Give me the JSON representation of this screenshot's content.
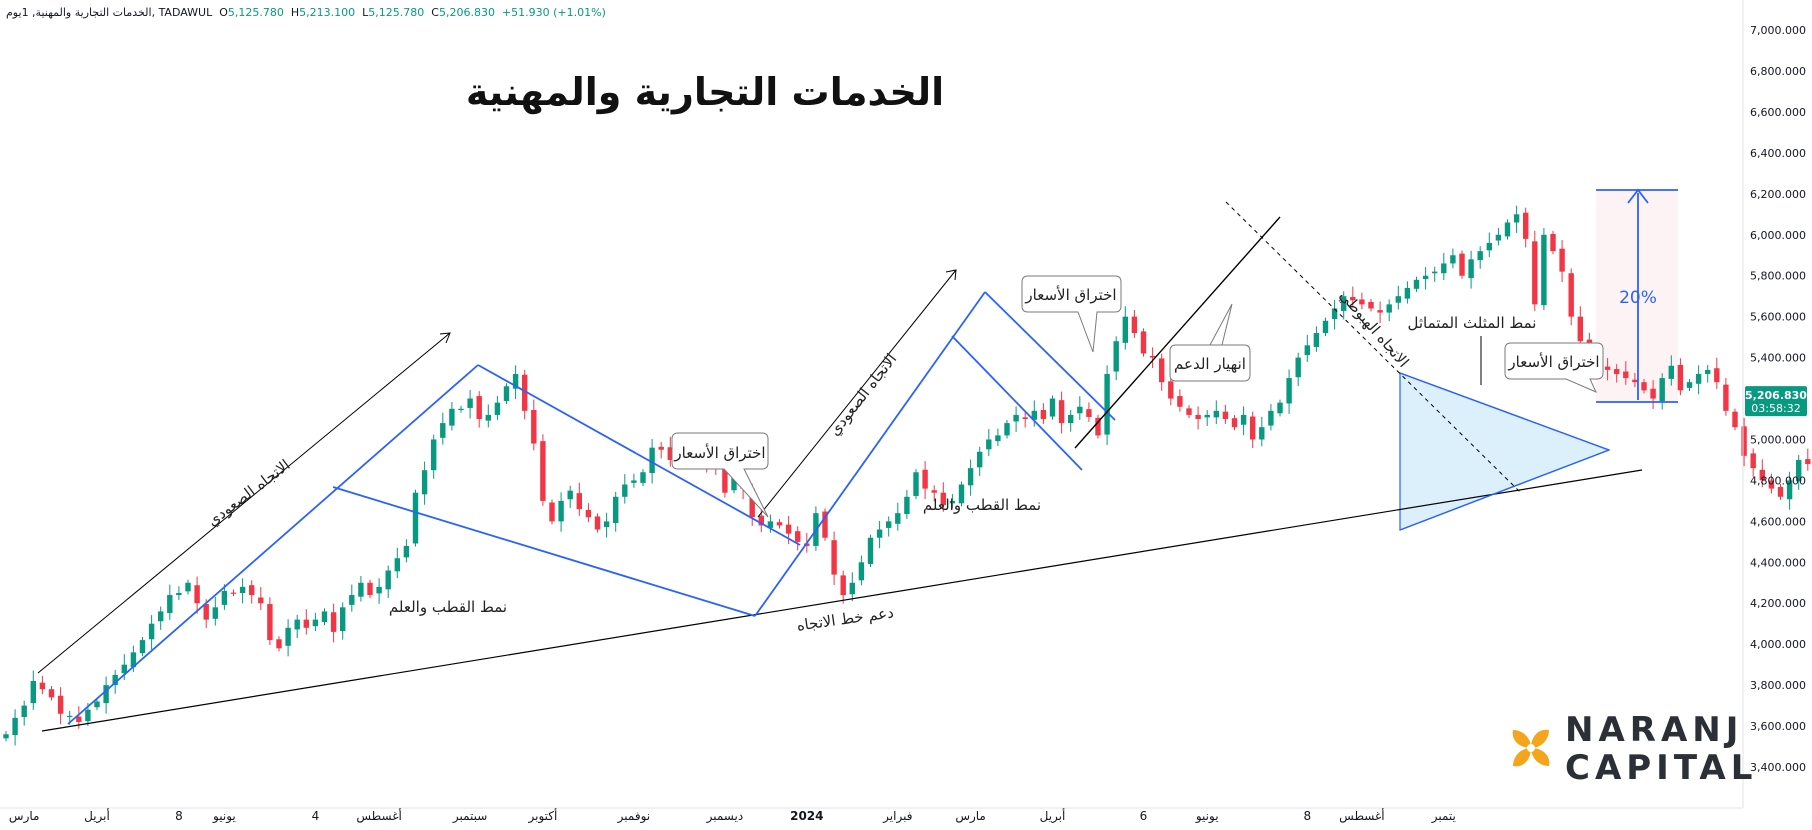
{
  "header": {
    "symbol": "الخدمات التجارية والمهنية, 1يوم, TADAWUL",
    "open_label": "O",
    "open": "5,125.780",
    "high_label": "H",
    "high": "5,213.100",
    "low_label": "L",
    "low": "5,125.780",
    "close_label": "C",
    "close": "5,206.830",
    "change": "+51.930 (+1.01%)"
  },
  "price_badge": {
    "price": "5,206.830",
    "countdown": "03:58:32",
    "color": "#089981"
  },
  "brand": {
    "line1": "NARANJ",
    "line2": "CAPITAL",
    "accent": "#f4a51c"
  },
  "colors": {
    "up": "#089981",
    "down": "#f23645",
    "pattern": "#2962ff",
    "trend": "#000000",
    "triangle_fill": "#bde4f8",
    "target_fill": "#fdf3f5"
  },
  "chart_data": {
    "type": "candlestick",
    "title": "الخدمات التجارية والمهنية",
    "ylim": [
      3280,
      7080
    ],
    "y_ticks": [
      "3,400.000",
      "3,600.000",
      "3,800.000",
      "4,000.000",
      "4,200.000",
      "4,400.000",
      "4,600.000",
      "4,800.000",
      "5,000.000",
      "5,200.000",
      "5,400.000",
      "5,600.000",
      "5,800.000",
      "6,000.000",
      "6,200.000",
      "6,400.000",
      "6,600.000",
      "6,800.000",
      "7,000.000"
    ],
    "y_tick_values": [
      3400,
      3600,
      3800,
      4000,
      4200,
      4400,
      4600,
      4800,
      5000,
      5200,
      5400,
      5600,
      5800,
      6000,
      6200,
      6400,
      6600,
      6800,
      7000
    ],
    "x_ticks": [
      "مارس",
      "أبريل",
      "8",
      "يونيو",
      "4",
      "أغسطس",
      "سبتمبر",
      "أكتوبر",
      "نوفمبر",
      "ديسمبر",
      "2024",
      "فبراير",
      "مارس",
      "أبريل",
      "6",
      "يونيو",
      "8",
      "أغسطس",
      "يتمبر"
    ],
    "x_tick_index": [
      2,
      10,
      19,
      24,
      34,
      41,
      51,
      59,
      69,
      79,
      88,
      98,
      106,
      115,
      125,
      132,
      143,
      149,
      158
    ],
    "x_tick_bold": [
      false,
      false,
      false,
      false,
      false,
      false,
      false,
      false,
      false,
      false,
      true,
      false,
      false,
      false,
      false,
      false,
      false,
      false,
      false
    ],
    "closes": [
      3560,
      3640,
      3700,
      3820,
      3780,
      3740,
      3660,
      3650,
      3620,
      3680,
      3720,
      3800,
      3850,
      3900,
      3960,
      4020,
      4100,
      4160,
      4240,
      4250,
      4300,
      4200,
      4120,
      4180,
      4260,
      4250,
      4280,
      4240,
      4200,
      4020,
      3980,
      4080,
      4120,
      4080,
      4120,
      4160,
      4060,
      4180,
      4240,
      4300,
      4240,
      4280,
      4360,
      4420,
      4480,
      4740,
      4850,
      5000,
      5080,
      5150,
      5150,
      5200,
      5100,
      5120,
      5180,
      5260,
      5320,
      5140,
      4980,
      4700,
      4600,
      4700,
      4750,
      4660,
      4620,
      4560,
      4600,
      4720,
      4780,
      4800,
      4840,
      4960,
      4950,
      4900,
      4900,
      4940,
      4920,
      4880,
      4860,
      4740,
      4820,
      4760,
      4620,
      4580,
      4600,
      4580,
      4540,
      4500,
      4480,
      4640,
      4520,
      4340,
      4240,
      4300,
      4400,
      4520,
      4560,
      4600,
      4640,
      4720,
      4840,
      4760,
      4740,
      4680,
      4700,
      4780,
      4860,
      4940,
      5000,
      5020,
      5080,
      5120,
      5100,
      5140,
      5100,
      5200,
      5080,
      5120,
      5160,
      5110,
      5020,
      5320,
      5480,
      5600,
      5520,
      5420,
      5400,
      5280,
      5200,
      5160,
      5120,
      5100,
      5120,
      5140,
      5100,
      5060,
      5120,
      5000,
      5060,
      5140,
      5180,
      5300,
      5400,
      5460,
      5520,
      5580,
      5640,
      5700,
      5680,
      5660,
      5640,
      5620,
      5660,
      5700,
      5740,
      5780,
      5800,
      5820,
      5860,
      5900,
      5800,
      5880,
      5920,
      5960,
      6000,
      6060,
      6100,
      5980,
      5660,
      6000,
      5920,
      5820,
      5600,
      5480,
      5440,
      5360,
      5340,
      5320,
      5300,
      5280,
      5240,
      5200,
      5300,
      5360,
      5240,
      5280,
      5320,
      5340,
      5280,
      5140,
      5060,
      4920,
      4860,
      4800,
      4760,
      4720,
      4800,
      4900,
      4880,
      4980,
      4940,
      5050,
      5180,
      5120,
      5100,
      5080,
      5140,
      5160,
      5120,
      5100,
      5080,
      5060,
      5080,
      5040,
      5060,
      5060,
      5080,
      5100,
      5140,
      5170,
      5207
    ]
  },
  "annotations": {
    "uptrend_1": "الاتجاه الصعودي",
    "uptrend_2": "الاتجاه الصعودي",
    "downtrend": "الاتجاه الهبوطي",
    "flag_1": "نمط القطب والعلم",
    "flag_2": "نمط القطب والعلم",
    "breakout_1": "اختراق الأسعار",
    "breakout_2": "اختراق الأسعار",
    "breakout_3": "اختراق الأسعار",
    "support_break": "انهيار الدعم",
    "trendline_support": "دعم خط الاتجاه",
    "triangle": "نمط المثلث المتماثل",
    "target_pct": "20%"
  }
}
